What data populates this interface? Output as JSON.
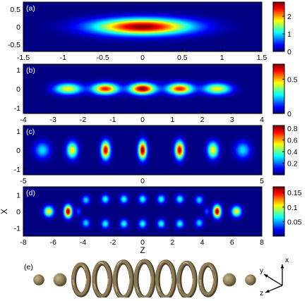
{
  "chart_data": [
    {
      "panel": "(a)",
      "type": "heatmap",
      "description_in_figure": "single elongated density peak",
      "x_ticks": [
        "-1.5",
        "-1",
        "-0.5",
        "0",
        "0.5",
        "1",
        "1.5"
      ],
      "xlim": [
        -1.5,
        1.5
      ],
      "y_ticks": [
        "0.5",
        "0",
        "-0.5"
      ],
      "ylim": [
        -0.7,
        0.7
      ],
      "colorbar": {
        "ticks": [
          "2",
          "1",
          "0"
        ],
        "range": [
          0,
          2.8
        ]
      },
      "peaks": [
        {
          "x": 0.0,
          "y": 0.0,
          "amplitude": 2.8,
          "sx": 0.42,
          "sy": 0.16
        }
      ]
    },
    {
      "panel": "(b)",
      "type": "heatmap",
      "x_ticks": [
        "-4",
        "-3",
        "-2",
        "-1",
        "0",
        "1",
        "2",
        "3",
        "4"
      ],
      "xlim": [
        -4,
        4
      ],
      "y_ticks": [
        "1",
        "0",
        "-1"
      ],
      "ylim": [
        -1.3,
        1.3
      ],
      "colorbar": {
        "ticks": [
          "0.5",
          "0"
        ],
        "range": [
          0,
          0.72
        ]
      },
      "peaks": [
        {
          "x": -2.5,
          "y": 0,
          "amplitude": 0.45,
          "sx": 0.32,
          "sy": 0.2
        },
        {
          "x": -1.25,
          "y": 0,
          "amplitude": 0.62,
          "sx": 0.3,
          "sy": 0.2
        },
        {
          "x": 0.0,
          "y": 0,
          "amplitude": 0.72,
          "sx": 0.3,
          "sy": 0.2
        },
        {
          "x": 1.25,
          "y": 0,
          "amplitude": 0.62,
          "sx": 0.3,
          "sy": 0.2
        },
        {
          "x": 2.5,
          "y": 0,
          "amplitude": 0.45,
          "sx": 0.32,
          "sy": 0.2
        }
      ]
    },
    {
      "panel": "(c)",
      "type": "heatmap",
      "x_ticks": [
        "-5",
        "0",
        "5"
      ],
      "xlim": [
        -5,
        5
      ],
      "y_ticks": [
        "1",
        "0",
        "-1"
      ],
      "ylim": [
        -1.3,
        1.3
      ],
      "colorbar": {
        "ticks": [
          "0.8",
          "0.6",
          "0.4",
          "0.2"
        ],
        "range": [
          0,
          0.85
        ]
      },
      "peaks": [
        {
          "x": -4.2,
          "y": 0,
          "amplitude": 0.3,
          "sx": 0.22,
          "sy": 0.3
        },
        {
          "x": -2.95,
          "y": 0,
          "amplitude": 0.55,
          "sx": 0.16,
          "sy": 0.3
        },
        {
          "x": -1.55,
          "y": 0,
          "amplitude": 0.8,
          "sx": 0.13,
          "sy": 0.32
        },
        {
          "x": 0.0,
          "y": 0,
          "amplitude": 0.85,
          "sx": 0.12,
          "sy": 0.33
        },
        {
          "x": 1.55,
          "y": 0,
          "amplitude": 0.8,
          "sx": 0.13,
          "sy": 0.32
        },
        {
          "x": 2.95,
          "y": 0,
          "amplitude": 0.55,
          "sx": 0.16,
          "sy": 0.3
        },
        {
          "x": 4.2,
          "y": 0,
          "amplitude": 0.3,
          "sx": 0.22,
          "sy": 0.3
        }
      ]
    },
    {
      "panel": "(d)",
      "type": "heatmap",
      "x_ticks": [
        "-8",
        "-6",
        "-4",
        "-2",
        "0",
        "2",
        "4",
        "6",
        "8"
      ],
      "xlim": [
        -8,
        8
      ],
      "xlabel": "Z",
      "y_ticks": [
        "1",
        "0",
        "-1"
      ],
      "ylim": [
        -1.5,
        1.5
      ],
      "ylabel": "X",
      "colorbar": {
        "ticks": [
          "0.15",
          "0.1",
          "0.05"
        ],
        "range": [
          0,
          0.17
        ]
      },
      "peaks": [
        {
          "x": -6.3,
          "y": 0,
          "amplitude": 0.11,
          "sx": 0.22,
          "sy": 0.22
        },
        {
          "x": -5.0,
          "y": 0,
          "amplitude": 0.17,
          "sx": 0.18,
          "sy": 0.26
        },
        {
          "x": 5.0,
          "y": 0,
          "amplitude": 0.17,
          "sx": 0.18,
          "sy": 0.26
        },
        {
          "x": 6.3,
          "y": 0,
          "amplitude": 0.11,
          "sx": 0.22,
          "sy": 0.22
        },
        {
          "x": -3.8,
          "y": 0.7,
          "amplitude": 0.06,
          "sx": 0.18,
          "sy": 0.18
        },
        {
          "x": -3.8,
          "y": -0.7,
          "amplitude": 0.06,
          "sx": 0.18,
          "sy": 0.18
        },
        {
          "x": -2.5,
          "y": 0.75,
          "amplitude": 0.07,
          "sx": 0.18,
          "sy": 0.18
        },
        {
          "x": -2.5,
          "y": -0.75,
          "amplitude": 0.07,
          "sx": 0.18,
          "sy": 0.18
        },
        {
          "x": -1.25,
          "y": 0.75,
          "amplitude": 0.07,
          "sx": 0.18,
          "sy": 0.18
        },
        {
          "x": -1.25,
          "y": -0.75,
          "amplitude": 0.07,
          "sx": 0.18,
          "sy": 0.18
        },
        {
          "x": 0.0,
          "y": 0.75,
          "amplitude": 0.07,
          "sx": 0.18,
          "sy": 0.18
        },
        {
          "x": 0.0,
          "y": -0.75,
          "amplitude": 0.07,
          "sx": 0.18,
          "sy": 0.18
        },
        {
          "x": 1.25,
          "y": 0.75,
          "amplitude": 0.07,
          "sx": 0.18,
          "sy": 0.18
        },
        {
          "x": 1.25,
          "y": -0.75,
          "amplitude": 0.07,
          "sx": 0.18,
          "sy": 0.18
        },
        {
          "x": 2.5,
          "y": 0.75,
          "amplitude": 0.07,
          "sx": 0.18,
          "sy": 0.18
        },
        {
          "x": 2.5,
          "y": -0.75,
          "amplitude": 0.07,
          "sx": 0.18,
          "sy": 0.18
        },
        {
          "x": 3.8,
          "y": 0.7,
          "amplitude": 0.06,
          "sx": 0.18,
          "sy": 0.18
        },
        {
          "x": 3.8,
          "y": -0.7,
          "amplitude": 0.06,
          "sx": 0.18,
          "sy": 0.18
        },
        {
          "x": -4.3,
          "y": 0,
          "amplitude": 0.035,
          "sx": 0.12,
          "sy": 0.18
        },
        {
          "x": 4.3,
          "y": 0,
          "amplitude": 0.035,
          "sx": 0.12,
          "sy": 0.18
        }
      ]
    }
  ],
  "panel_e": {
    "label": "(e)",
    "axes": {
      "x": "x",
      "y": "y",
      "z": "z"
    },
    "rings": [
      0.35,
      0.55,
      0.7,
      0.85,
      0.95,
      1.0,
      0.95,
      0.85,
      0.7,
      0.55,
      0.35
    ],
    "ring_types": [
      "sphere",
      "sphere",
      "torus",
      "torus",
      "torus",
      "torus",
      "torus",
      "torus",
      "torus",
      "sphere",
      "sphere"
    ]
  },
  "colors": {
    "surface": "#8a7a55",
    "surface_light": "#c8b88a",
    "surface_dark": "#4a3f28"
  }
}
